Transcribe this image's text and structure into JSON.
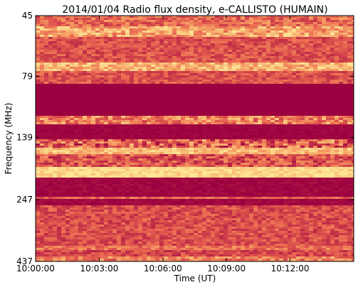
{
  "chart_data": {
    "type": "spectrogram",
    "title": "2014/01/04  Radio flux density, e-CALLISTO (HUMAIN)",
    "x_label": "Time (UT)",
    "y_label": "Frequency (MHz)",
    "xlim": [
      "10:00:00",
      "10:15:00"
    ],
    "xticks": [
      "10:00:00",
      "10:03:00",
      "10:06:00",
      "10:09:00",
      "10:12:00"
    ],
    "ylim": [
      45,
      437
    ],
    "yticks": [
      45,
      79,
      139,
      247,
      437
    ],
    "log_y": true,
    "y_inverted": true
  }
}
